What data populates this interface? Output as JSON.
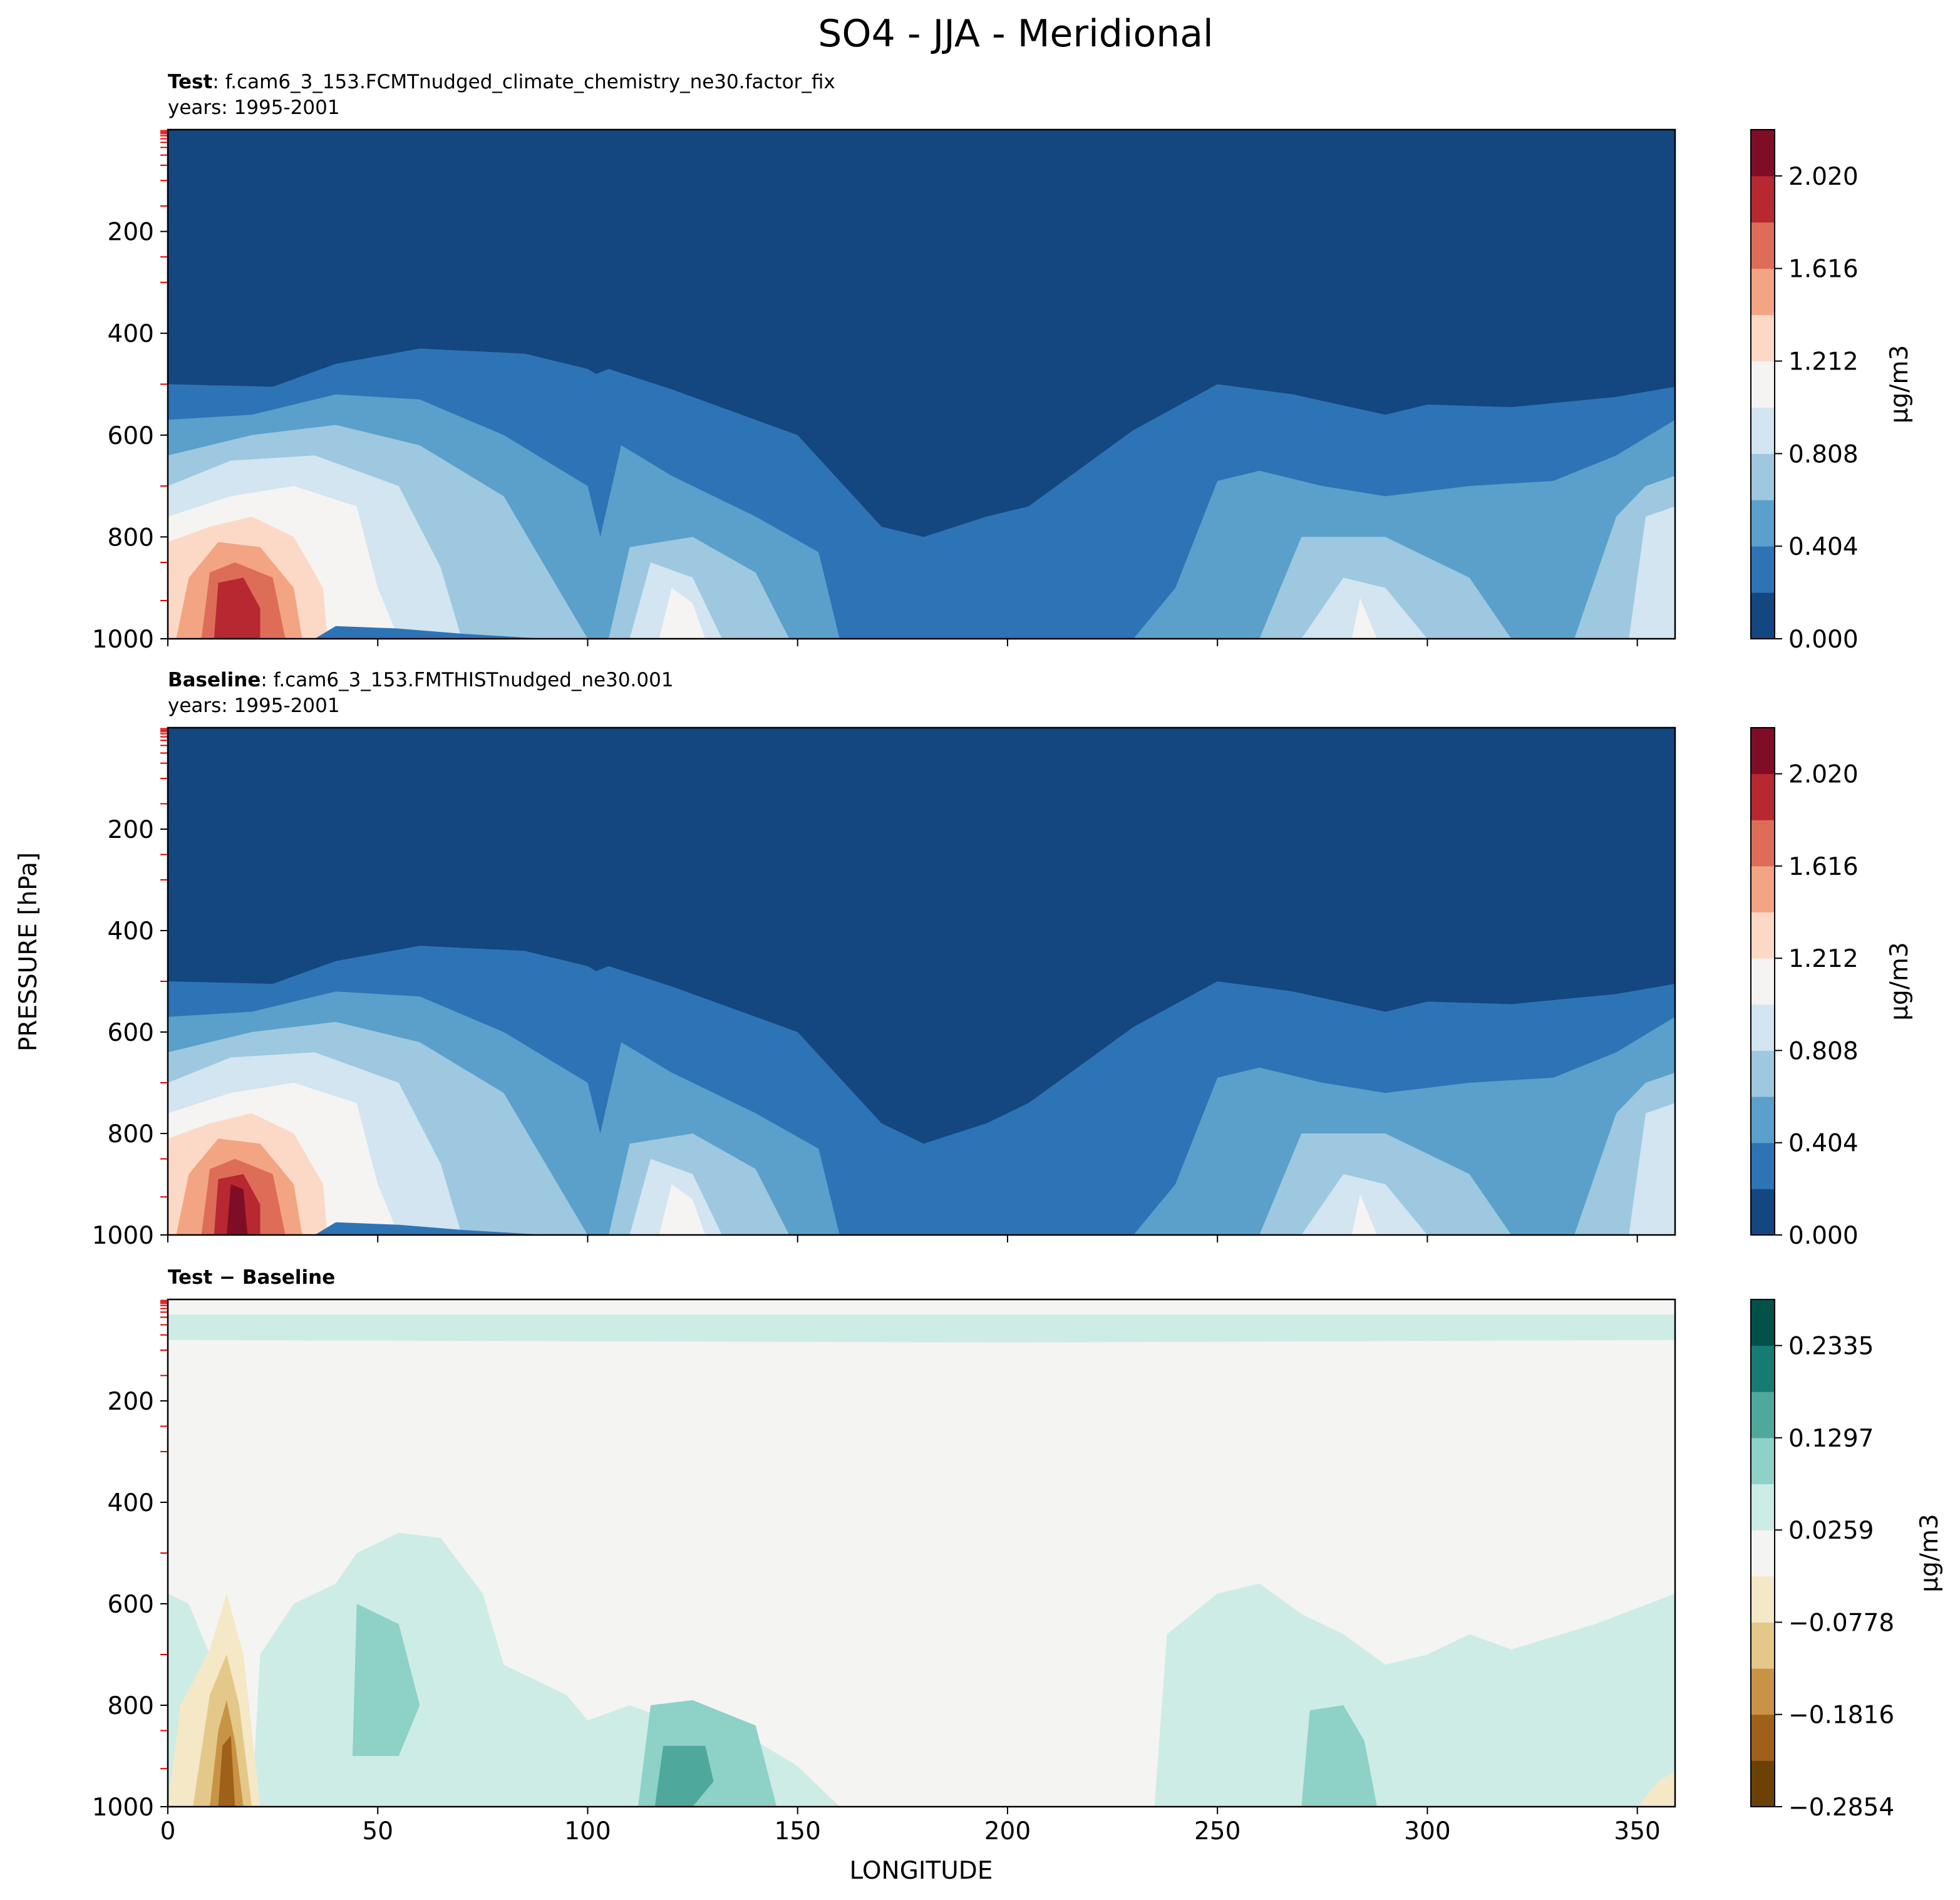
{
  "chart_data": {
    "type": "heatmap",
    "title": "SO4 - JJA - Meridional",
    "xlabel": "LONGITUDE",
    "ylabel": "PRESSURE [hPa]",
    "xlim": [
      0,
      359
    ],
    "ylim": [
      1000,
      0
    ],
    "x_ticks": [
      "0",
      "50",
      "100",
      "150",
      "200",
      "250",
      "300",
      "350"
    ],
    "y_ticks": [
      "200",
      "400",
      "600",
      "800",
      "1000"
    ],
    "panels": [
      {
        "id": "test",
        "title_bold": "Test",
        "title_text": ": f.cam6_3_153.FCMTnudged_climate_chemistry_ne30.factor_fix",
        "years": "years: 1995-2001",
        "colorbar": {
          "label": "μg/m3",
          "ticks": [
            "0.000",
            "0.404",
            "0.808",
            "1.212",
            "1.616",
            "2.020"
          ],
          "colors": [
            "#144680",
            "#2d74b6",
            "#5aa0cb",
            "#9dc8e0",
            "#d2e5f0",
            "#f5f4f3",
            "#fcd9c6",
            "#f3a483",
            "#dd6d57",
            "#b82831",
            "#800d26"
          ]
        },
        "surface_row": [
          "#fad0b8",
          "#f09a7a",
          "#b82831",
          "#e87d62",
          "#f4f3f1",
          "#2d74b6",
          "#144680",
          "#2d74b6",
          "#5aa0cb",
          "#9dc8e0",
          "#5aa0cb",
          "#2d74b6",
          "#5aa0cb",
          "#9dc8e0",
          "#d2e5f0",
          "#5aa0cb",
          "#9dc8e0",
          "#2d74b6",
          "#5aa0cb",
          "#d2e5f0"
        ]
      },
      {
        "id": "baseline",
        "title_bold": "Baseline",
        "title_text": ": f.cam6_3_153.FMTHISTnudged_ne30.001",
        "years": "years: 1995-2001",
        "colorbar": {
          "label": "μg/m3",
          "ticks": [
            "0.000",
            "0.404",
            "0.808",
            "1.212",
            "1.616",
            "2.020"
          ],
          "colors": [
            "#144680",
            "#2d74b6",
            "#5aa0cb",
            "#9dc8e0",
            "#d2e5f0",
            "#f5f4f3",
            "#fcd9c6",
            "#f3a483",
            "#dd6d57",
            "#b82831",
            "#800d26"
          ]
        },
        "surface_row": [
          "#fad0b8",
          "#f09a7a",
          "#800d26",
          "#e87d62",
          "#f4f3f1",
          "#2d74b6",
          "#144680",
          "#2d74b6",
          "#5aa0cb",
          "#9dc8e0",
          "#5aa0cb",
          "#2d74b6",
          "#5aa0cb",
          "#9dc8e0",
          "#d2e5f0",
          "#5aa0cb",
          "#9dc8e0",
          "#2d74b6",
          "#5aa0cb",
          "#d2e5f0"
        ]
      },
      {
        "id": "diff",
        "title_bold": "Test − Baseline",
        "title_text": "",
        "years": "",
        "colorbar": {
          "label": "μg/m3",
          "ticks": [
            "−0.2854",
            "−0.1816",
            "−0.0778",
            "0.0259",
            "0.1297",
            "0.2335"
          ],
          "colors": [
            "#6b4107",
            "#9f6119",
            "#c99346",
            "#e3c88a",
            "#f4e8c6",
            "#f4f4f2",
            "#cdece6",
            "#8ed1c6",
            "#4ea99c",
            "#167c73",
            "#03524a"
          ]
        }
      }
    ]
  }
}
